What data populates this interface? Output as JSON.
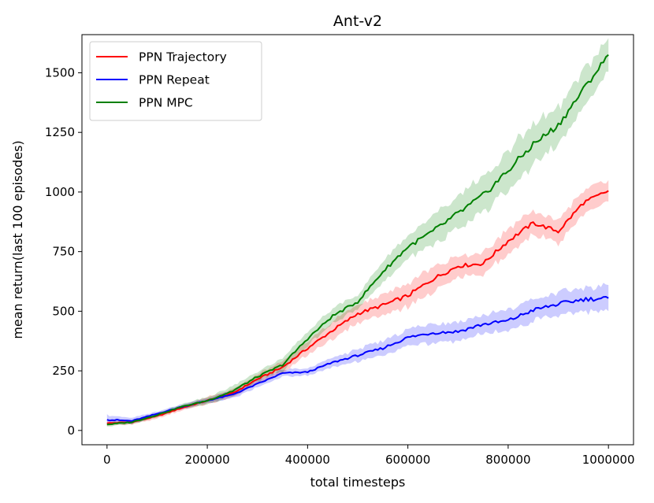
{
  "chart_data": {
    "type": "line",
    "title": "Ant-v2",
    "xlabel": "total timesteps",
    "ylabel": "mean return(last 100 episodes)",
    "xlim": [
      -50000,
      1050000
    ],
    "ylim": [
      -60,
      1660
    ],
    "xticks": [
      0,
      200000,
      400000,
      600000,
      800000,
      1000000
    ],
    "xtick_labels": [
      "0",
      "200000",
      "400000",
      "600000",
      "800000",
      "1000000"
    ],
    "yticks": [
      0,
      250,
      500,
      750,
      1000,
      1250,
      1500
    ],
    "ytick_labels": [
      "0",
      "250",
      "500",
      "750",
      "1000",
      "1250",
      "1500"
    ],
    "grid": false,
    "legend_position": "top-left",
    "x": [
      0,
      50000,
      100000,
      150000,
      200000,
      250000,
      300000,
      350000,
      400000,
      450000,
      500000,
      550000,
      600000,
      650000,
      700000,
      750000,
      800000,
      850000,
      900000,
      950000,
      1000000
    ],
    "series": [
      {
        "name": "PPN Trajectory",
        "color": "#ff0000",
        "values": [
          30,
          35,
          60,
          95,
          125,
          155,
          215,
          265,
          345,
          420,
          490,
          525,
          565,
          635,
          690,
          700,
          795,
          870,
          835,
          955,
          1005
        ],
        "band": [
          10,
          10,
          10,
          10,
          15,
          15,
          20,
          25,
          30,
          35,
          40,
          40,
          50,
          50,
          45,
          45,
          55,
          45,
          50,
          50,
          45
        ]
      },
      {
        "name": "PPN Repeat",
        "color": "#0000ff",
        "values": [
          45,
          40,
          70,
          100,
          125,
          150,
          195,
          240,
          245,
          285,
          315,
          345,
          390,
          410,
          415,
          445,
          460,
          505,
          530,
          550,
          555
        ],
        "band": [
          20,
          12,
          10,
          10,
          10,
          15,
          15,
          15,
          15,
          20,
          25,
          30,
          35,
          40,
          40,
          40,
          45,
          45,
          50,
          50,
          55
        ]
      },
      {
        "name": "PPN MPC",
        "color": "#008000",
        "values": [
          25,
          35,
          65,
          100,
          125,
          165,
          225,
          275,
          385,
          480,
          540,
          665,
          770,
          835,
          910,
          985,
          1090,
          1200,
          1280,
          1430,
          1575
        ],
        "band": [
          8,
          8,
          8,
          10,
          15,
          20,
          20,
          25,
          30,
          30,
          35,
          40,
          50,
          60,
          70,
          75,
          80,
          85,
          75,
          75,
          70
        ]
      }
    ]
  }
}
